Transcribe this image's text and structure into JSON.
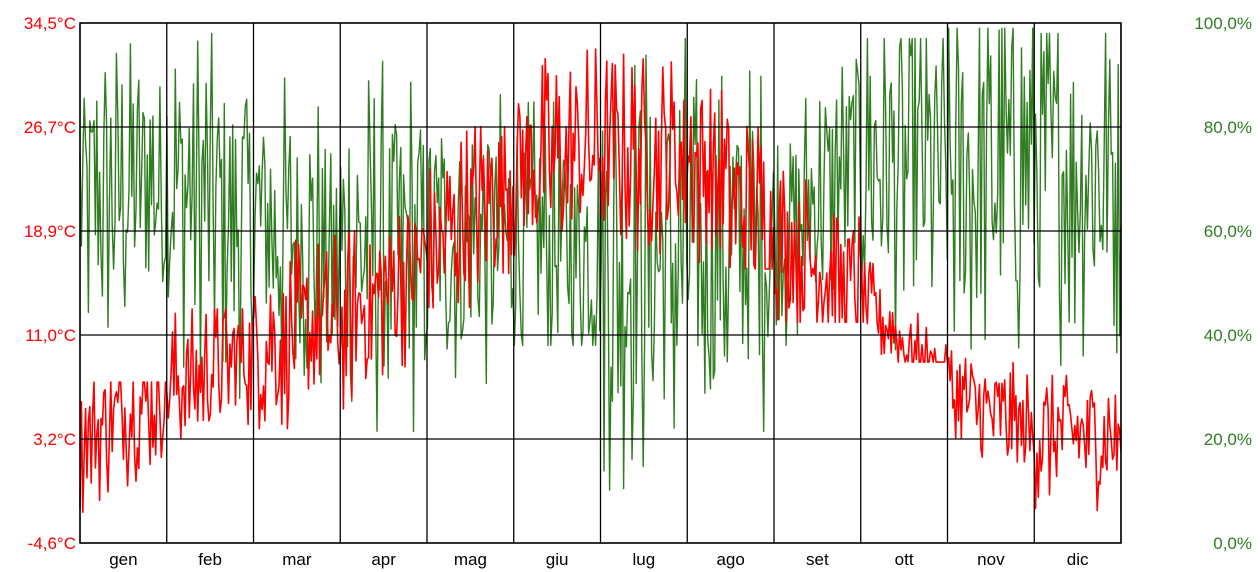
{
  "chart_data": {
    "type": "line",
    "x_categories": [
      "gen",
      "feb",
      "mar",
      "apr",
      "mag",
      "giu",
      "lug",
      "ago",
      "set",
      "ott",
      "nov",
      "dic"
    ],
    "y_left": {
      "ticks": [
        "34,5°C",
        "26,7°C",
        "18,9°C",
        "11,0°C",
        "3,2°C",
        "-4,6°C"
      ],
      "range": [
        -4.6,
        34.5
      ],
      "color": "#ff0000"
    },
    "y_right": {
      "ticks": [
        "100,0%",
        "80,0%",
        "60,0%",
        "40,0%",
        "20,0%",
        "0,0%"
      ],
      "range": [
        0,
        100
      ],
      "color": "#2e7d1f"
    },
    "grid": true,
    "series": [
      {
        "axis": "left",
        "color": "#ff0000",
        "monthly_mean": [
          3.2,
          7.0,
          10.0,
          11.8,
          17.0,
          23.5,
          25.0,
          24.5,
          18.5,
          14.0,
          6.5,
          3.5
        ],
        "monthly_range": [
          [
            -4.6,
            7.5
          ],
          [
            0.5,
            13.0
          ],
          [
            4.0,
            19.5
          ],
          [
            5.0,
            20.0
          ],
          [
            11.0,
            26.7
          ],
          [
            17.0,
            34.5
          ],
          [
            17.0,
            33.5
          ],
          [
            16.0,
            34.0
          ],
          [
            12.0,
            26.0
          ],
          [
            9.0,
            16.5
          ],
          [
            1.5,
            11.5
          ],
          [
            -4.0,
            8.0
          ]
        ]
      },
      {
        "axis": "right",
        "color": "#2e7d1f",
        "monthly_mean": [
          65,
          70,
          62,
          55,
          58,
          58,
          55,
          55,
          58,
          75,
          70,
          72
        ],
        "monthly_range": [
          [
            28,
            96
          ],
          [
            22,
            98
          ],
          [
            28,
            95
          ],
          [
            13,
            93
          ],
          [
            25,
            88
          ],
          [
            38,
            98
          ],
          [
            0,
            97
          ],
          [
            20,
            97
          ],
          [
            38,
            93
          ],
          [
            20,
            97
          ],
          [
            14,
            99
          ],
          [
            18,
            98
          ]
        ]
      }
    ]
  }
}
